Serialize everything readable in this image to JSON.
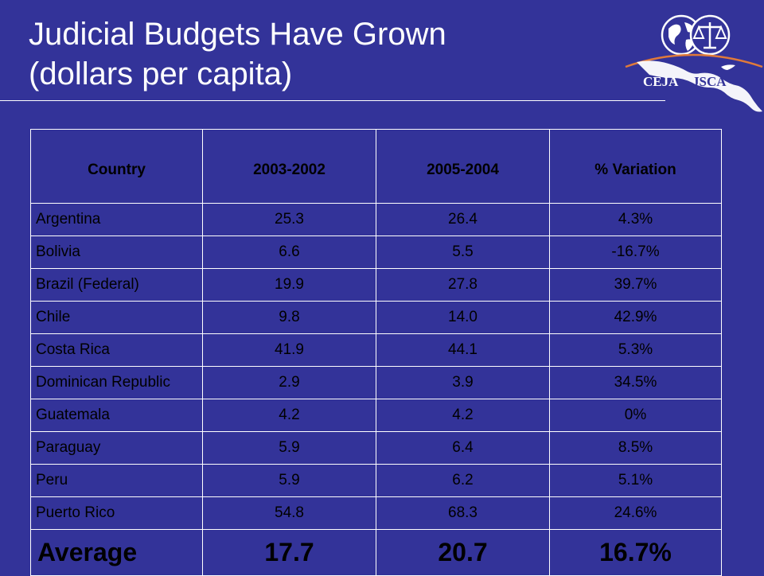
{
  "slide": {
    "title_line1": "Judicial Budgets Have Grown",
    "title_line2": "(dollars per capita)"
  },
  "logo": {
    "left_text": "CEJA",
    "right_text": "JSCA",
    "icon": "globe-and-scales-icon"
  },
  "table": {
    "headers": [
      "Country",
      "2003-2002",
      "2005-2004",
      "% Variation"
    ],
    "rows": [
      [
        "Argentina",
        "25.3",
        "26.4",
        "4.3%"
      ],
      [
        "Bolivia",
        "6.6",
        "5.5",
        "-16.7%"
      ],
      [
        "Brazil (Federal)",
        "19.9",
        "27.8",
        "39.7%"
      ],
      [
        "Chile",
        "9.8",
        "14.0",
        "42.9%"
      ],
      [
        "Costa Rica",
        "41.9",
        "44.1",
        "5.3%"
      ],
      [
        "Dominican Republic",
        "2.9",
        "3.9",
        "34.5%"
      ],
      [
        "Guatemala",
        "4.2",
        "4.2",
        "0%"
      ],
      [
        "Paraguay",
        "5.9",
        "6.4",
        "8.5%"
      ],
      [
        "Peru",
        "5.9",
        "6.2",
        "5.1%"
      ],
      [
        "Puerto Rico",
        "54.8",
        "68.3",
        "24.6%"
      ]
    ],
    "average": [
      "Average",
      "17.7",
      "20.7",
      "16.7%"
    ]
  },
  "colors": {
    "background": "#333399",
    "text": "#ffffff",
    "table_text": "#000000",
    "logo_arc": "#e07a3a"
  }
}
